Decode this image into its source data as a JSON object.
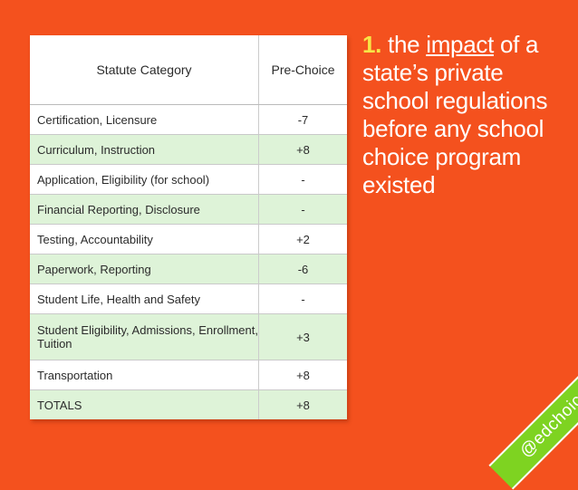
{
  "table": {
    "headers": {
      "category": "Statute Category",
      "pre": "Pre-Choice"
    },
    "rows": [
      {
        "category": "Certification, Licensure",
        "pre": "-7"
      },
      {
        "category": "Curriculum, Instruction",
        "pre": "+8"
      },
      {
        "category": "Application, Eligibility (for school)",
        "pre": "-"
      },
      {
        "category": "Financial Reporting, Disclosure",
        "pre": "-"
      },
      {
        "category": "Testing, Accountability",
        "pre": "+2"
      },
      {
        "category": "Paperwork, Reporting",
        "pre": "-6"
      },
      {
        "category": "Student Life, Health and Safety",
        "pre": "-"
      },
      {
        "category": "Student Eligibility, Admissions, Enrollment, Tuition",
        "pre": "+3"
      },
      {
        "category": "Transportation",
        "pre": "+8"
      },
      {
        "category": "TOTALS",
        "pre": "+8"
      }
    ]
  },
  "caption": {
    "number": "1.",
    "lead": "the",
    "link": "impact",
    "rest": "of a state’s private school regulations before any school choice program existed"
  },
  "ribbon": {
    "handle": "@edchoice"
  },
  "colors": {
    "background": "#f4511e",
    "row_alt": "#def3d8",
    "accent_yellow": "#f7e547",
    "ribbon_green": "#7ed321"
  }
}
